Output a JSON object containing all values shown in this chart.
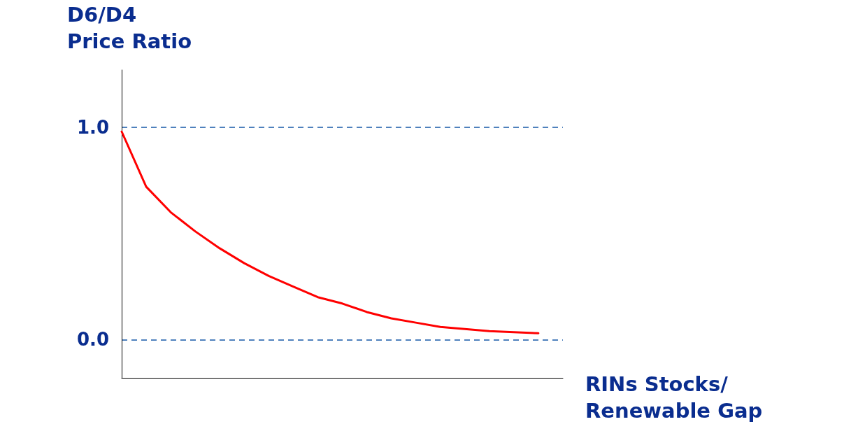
{
  "chart_data": {
    "type": "line",
    "ylabel": "D6/D4\nPrice Ratio",
    "xlabel": "RINs Stocks/\nRenewable Gap",
    "categories": [
      null,
      null,
      null,
      null,
      null,
      null,
      null,
      null,
      null,
      null,
      null,
      null,
      null,
      null,
      null,
      null,
      null,
      null,
      null
    ],
    "series": [
      {
        "color": "#ff0000",
        "values": [
          0.98,
          0.72,
          0.6,
          0.51,
          0.43,
          0.36,
          0.3,
          0.25,
          0.2,
          0.17,
          0.13,
          0.1,
          0.08,
          0.06,
          0.05,
          0.04,
          0.035,
          0.03,
          null
        ]
      }
    ],
    "ylim": [
      -0.18,
      1.27
    ],
    "yticks": [
      {
        "value": 0,
        "label": "0.0"
      },
      {
        "value": 1,
        "label": "1.0"
      }
    ],
    "grid": "y",
    "marker": "none",
    "line_style": "solid",
    "tick_labels": "y"
  }
}
